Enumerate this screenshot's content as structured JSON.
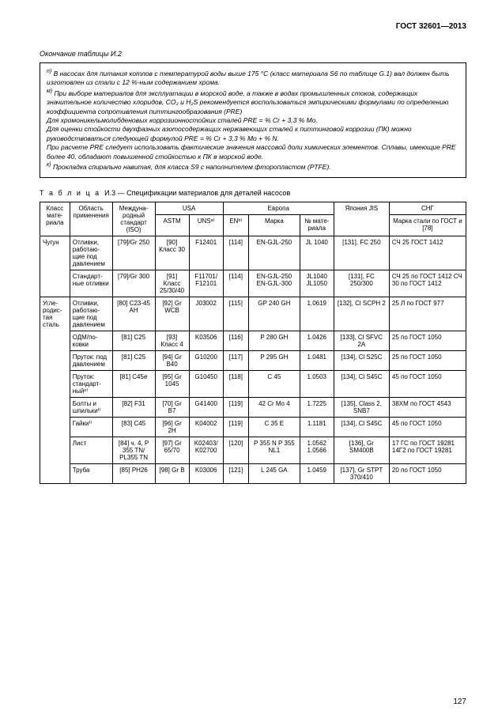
{
  "doc_id": "ГОСТ 32601—2013",
  "continuation": "Окончание таблицы И.2",
  "notes": {
    "n": "В насосах для питания котлов с температурой воды выше 175 °С (класс материала S6 по таблице G.1) вал должен быть изготовлен из стали с 12 %-ным содержанием хрома.",
    "m1": "При выборе материалов для эксплуатации в морской воде, а также в водах промышленных стоков, содержащих значительное количество хлоридов, CO₂ и H₂S рекомендуется воспользоваться эмпирическими формулами по определению коэффициента сопротивления питтингообразования (PRE)",
    "m2": "Для хромоникельмолибденовых коррозионностойких сталей PRE = % Cr + 3,3 % Mo.",
    "m3": "Для оценки стойкости двухфазных азотосодержащих нержавеющих сталей к питтинговой коррозии (ПК) можно руководствоваться следующей формулой PRE = % Cr + 3,3 % Mo + % N.",
    "m4": "При расчете PRE следует использовать фактические значения массовой доли химических элементов. Сплавы, имеющие PRE более 40, обладают повышенной стойкостью к ПК в морской воде.",
    "k": "Прокладка спирально навитая, для класса S9 с наполнителем фторопластом (PTFE)."
  },
  "table_caption_prefix": "Т а б л и ц а",
  "table_caption": "И.3 — Спецификации материалов для деталей насосов",
  "headers": {
    "klass": "Класс мате­риала",
    "obl": "Область приме­нения",
    "iso": "Междуна­родный стандарт (ISO)",
    "usa": "USA",
    "astm": "ASTM",
    "uns": "UNSᵃ⁾",
    "europe": "Европа",
    "en": "ENᵇ⁾",
    "marka": "Марка",
    "nmat": "№ мате­риала",
    "japan": "Япония JIS",
    "sng": "СНГ",
    "sng_sub": "Марка стали по ГОСТ и [78]"
  },
  "rows": [
    {
      "klass": "Чугун",
      "obl": "Отливки, работаю­щие под давле­нием",
      "iso": "[79]/Gr 250",
      "astm": "[90] Класс 30",
      "uns": "F12401",
      "en": "[114]",
      "marka": "EN-GJL-250",
      "nmat": "JL 1040",
      "japan": "[131], FC 250",
      "sng": "СЧ 25 ГОСТ 1412"
    },
    {
      "klass": "",
      "obl": "Стандарт­ные отливки",
      "iso": "[79]/Gr 300",
      "astm": "[91] Класс 25/30/40",
      "uns": "F11701/ F12101",
      "en": "[114]",
      "marka": "EN-GJL-250 EN-GJL-300",
      "nmat": "JL1040 JL1050",
      "japan": "[131], FC 250/300",
      "sng": "СЧ 25 по ГОСТ 1412 СЧ 30 по ГОСТ 1412"
    },
    {
      "klass": "Угле­родис­тая сталь",
      "obl": "Отливки, работаю­щие под давле­нием",
      "iso": "[80] C23-45 AH",
      "astm": "[92] Gr WCB",
      "uns": "J03002",
      "en": "[115]",
      "marka": "GP 240 GH",
      "nmat": "1.0619",
      "japan": "[132], Cl SCPH 2",
      "sng": "25 Л по ГОСТ 977"
    },
    {
      "klass": "",
      "obl": "ОДМ/по­ковки",
      "iso": "[81] C25",
      "astm": "[93] Класс 4",
      "uns": "K03506",
      "en": "[116]",
      "marka": "P 280 GH",
      "nmat": "1.0426",
      "japan": "[133], Cl SFVC 2A",
      "sng": "25 по ГОСТ 1050"
    },
    {
      "klass": "",
      "obl": "Пруток: под дав­лением",
      "iso": "[81] C25",
      "astm": "[94] Gr B40",
      "uns": "G10200",
      "en": "[117]",
      "marka": "P 295 GH",
      "nmat": "1.0481",
      "japan": "[134], Cl S25C",
      "sng": "25 по ГОСТ 1050"
    },
    {
      "klass": "",
      "obl": "Пруток: стандарт­ныйᵉ⁾",
      "iso": "[81] C45e",
      "astm": "[95] Gr 1045",
      "uns": "G10450",
      "en": "[118]",
      "marka": "C 45",
      "nmat": "1.0503",
      "japan": "[134], Cl S45C",
      "sng": "45 по ГОСТ 1050"
    },
    {
      "klass": "",
      "obl": "Болты и шпилькиᶠ⁾",
      "iso": "[82] F31",
      "astm": "[70] Gr B7",
      "uns": "G41400",
      "en": "[119]",
      "marka": "42 Cr Mo 4",
      "nmat": "1.7225",
      "japan": "[135], Class 2, SNB7",
      "sng": "38ХМ по ГОСТ 4543"
    },
    {
      "klass": "",
      "obl": "Гайкиᶠ⁾",
      "iso": "[83] C45",
      "astm": "[96] Gr 2H",
      "uns": "K04002",
      "en": "[119]",
      "marka": "C 35 E",
      "nmat": "1.1181",
      "japan": "[134], Cl S45C",
      "sng": "45 по ГОСТ 1050"
    },
    {
      "klass": "",
      "obl": "Лист",
      "iso": "[84] ч. 4, P 355 TN/ PL355 TN",
      "astm": "[97] Gr 65/70",
      "uns": "K02403/ K02700",
      "en": "[120]",
      "marka": "P 355 N P 355 NL1",
      "nmat": "1.0562 1.0566",
      "japan": "[136], Gr SM400B",
      "sng": "17 ГС по ГОСТ 19281 14Г2 по ГОСТ 19281"
    },
    {
      "klass": "",
      "obl": "Труба",
      "iso": "[85] PH26",
      "astm": "[98] Gr B",
      "uns": "K03006",
      "en": "[121]",
      "marka": "L 245 GA",
      "nmat": "1.0459",
      "japan": "[137], Gr STPT 370/410",
      "sng": "20 по ГОСТ 1050"
    }
  ],
  "page_number": "127"
}
